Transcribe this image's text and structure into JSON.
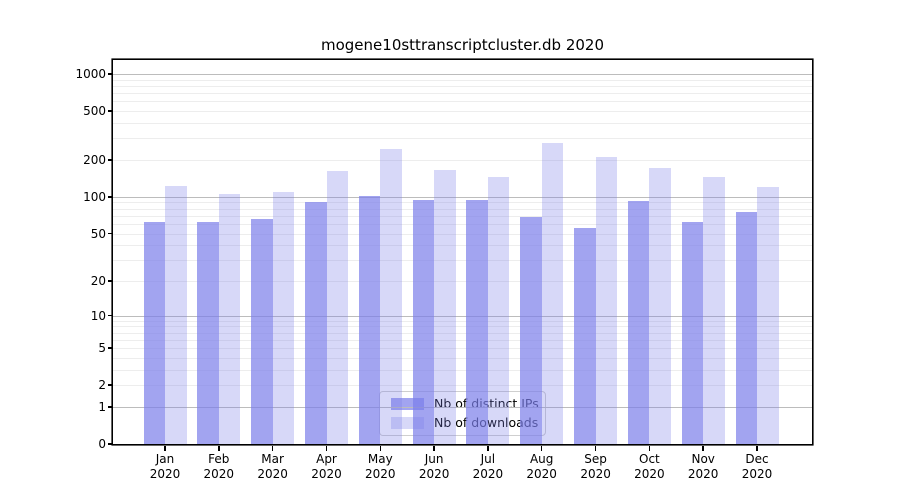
{
  "chart_data": {
    "type": "bar",
    "title": "mogene10sttranscriptcluster.db 2020",
    "categories": [
      "Jan",
      "Feb",
      "Mar",
      "Apr",
      "May",
      "Jun",
      "Jul",
      "Aug",
      "Sep",
      "Oct",
      "Nov",
      "Dec"
    ],
    "x_year": "2020",
    "series": [
      {
        "name": "Nb of distinct IPs",
        "color": "rgba(122,126,233,0.7)",
        "values": [
          62,
          62,
          66,
          90,
          102,
          94,
          94,
          68,
          55,
          92,
          62,
          75
        ]
      },
      {
        "name": "Nb of downloads",
        "color": "rgba(122,126,233,0.3)",
        "values": [
          123,
          105,
          109,
          162,
          248,
          165,
          145,
          276,
          212,
          173,
          146,
          120
        ]
      }
    ],
    "y_axis": {
      "scale": "log1p",
      "ticks": [
        1000,
        500,
        200,
        100,
        50,
        20,
        10,
        5,
        2,
        1,
        0
      ],
      "range_top": 1300
    },
    "grid": {
      "major_lines": [
        1,
        10,
        100,
        1000
      ],
      "minor_decades": [
        1,
        10,
        100
      ],
      "major_color": "#bcbcbc",
      "minor_color": "#ededed"
    },
    "legend": {
      "position": "lower-center"
    },
    "xlabel": "",
    "ylabel": ""
  }
}
